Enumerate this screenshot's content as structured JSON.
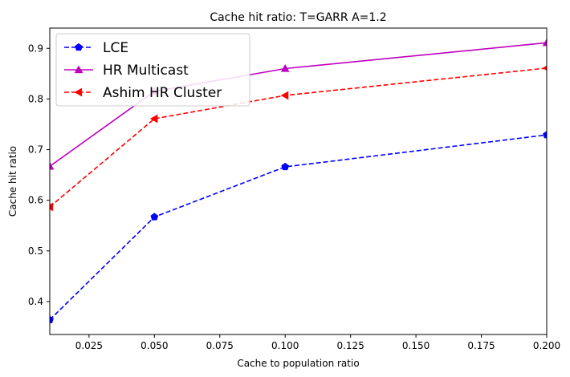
{
  "chart_data": {
    "type": "line",
    "title": "Cache hit ratio: T=GARR A=1.2",
    "xlabel": "Cache to population ratio",
    "ylabel": "Cache hit ratio",
    "x": [
      0.01,
      0.05,
      0.1,
      0.2
    ],
    "xlim": [
      0.01,
      0.2
    ],
    "ylim": [
      0.335,
      0.94
    ],
    "xticks": [
      "0.025",
      "0.050",
      "0.075",
      "0.100",
      "0.125",
      "0.150",
      "0.175",
      "0.200"
    ],
    "yticks": [
      "0.4",
      "0.5",
      "0.6",
      "0.7",
      "0.8",
      "0.9"
    ],
    "legend_position": "top-left",
    "grid": false,
    "series": [
      {
        "name": "LCE",
        "values": [
          0.364,
          0.567,
          0.666,
          0.729
        ],
        "color": "#0000ff",
        "dash": "dashed",
        "marker": "pentagon"
      },
      {
        "name": "HR Multicast",
        "values": [
          0.667,
          0.815,
          0.86,
          0.911
        ],
        "color": "#bf00bf",
        "dash": "solid",
        "marker": "triangle-up"
      },
      {
        "name": "Ashim HR Cluster",
        "values": [
          0.587,
          0.761,
          0.807,
          0.861
        ],
        "color": "#ff0000",
        "dash": "dashed",
        "marker": "triangle-left"
      }
    ]
  }
}
